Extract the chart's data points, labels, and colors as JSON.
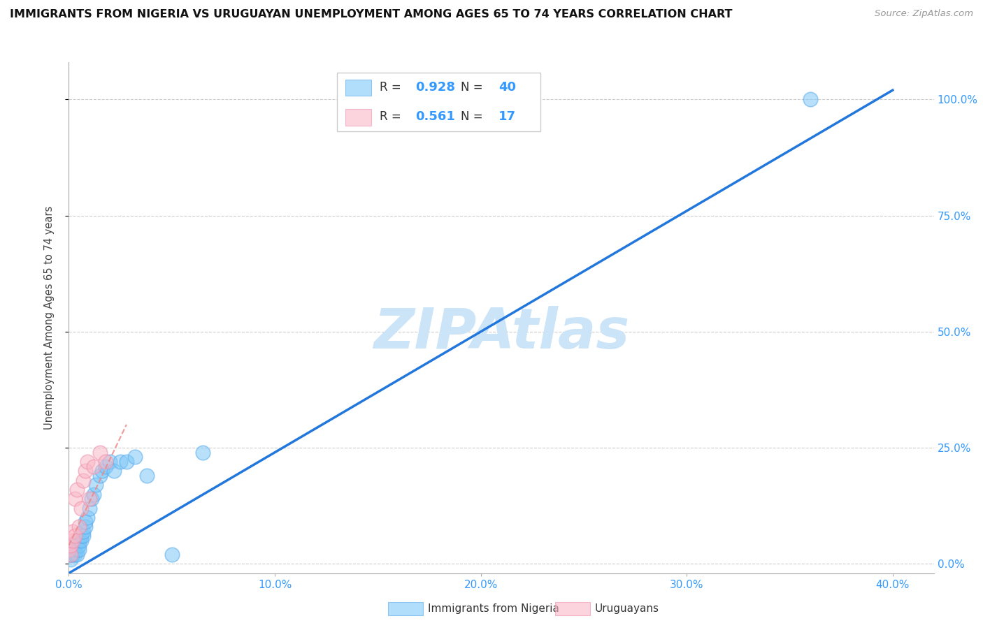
{
  "title": "IMMIGRANTS FROM NIGERIA VS URUGUAYAN UNEMPLOYMENT AMONG AGES 65 TO 74 YEARS CORRELATION CHART",
  "source": "Source: ZipAtlas.com",
  "xlabel_ticks": [
    "0.0%",
    "10.0%",
    "20.0%",
    "30.0%",
    "40.0%"
  ],
  "xlabel_tick_vals": [
    0.0,
    0.1,
    0.2,
    0.3,
    0.4
  ],
  "ylabel": "Unemployment Among Ages 65 to 74 years",
  "ylabel_ticks": [
    "100.0%",
    "75.0%",
    "50.0%",
    "25.0%",
    "0.0%"
  ],
  "ylabel_tick_vals": [
    1.0,
    0.75,
    0.5,
    0.25,
    0.0
  ],
  "xlim": [
    0.0,
    0.42
  ],
  "ylim": [
    -0.02,
    1.08
  ],
  "blue_R": 0.928,
  "blue_N": 40,
  "pink_R": 0.561,
  "pink_N": 17,
  "blue_color": "#7ec8f7",
  "pink_color": "#f9b8c8",
  "blue_edge_color": "#5aabee",
  "pink_edge_color": "#f090aa",
  "blue_line_color": "#2277dd",
  "pink_line_color": "#ee8888",
  "grid_color": "#cccccc",
  "watermark_color": "#cce4f8",
  "blue_scatter_x": [
    0.0,
    0.001,
    0.001,
    0.001,
    0.002,
    0.002,
    0.002,
    0.002,
    0.003,
    0.003,
    0.003,
    0.004,
    0.004,
    0.004,
    0.005,
    0.005,
    0.005,
    0.006,
    0.006,
    0.007,
    0.007,
    0.008,
    0.008,
    0.009,
    0.01,
    0.011,
    0.012,
    0.013,
    0.015,
    0.016,
    0.018,
    0.02,
    0.022,
    0.025,
    0.028,
    0.032,
    0.038,
    0.05,
    0.065,
    0.36
  ],
  "blue_scatter_y": [
    0.02,
    0.01,
    0.03,
    0.02,
    0.02,
    0.03,
    0.04,
    0.02,
    0.03,
    0.04,
    0.02,
    0.03,
    0.05,
    0.02,
    0.04,
    0.05,
    0.03,
    0.05,
    0.06,
    0.06,
    0.07,
    0.08,
    0.09,
    0.1,
    0.12,
    0.14,
    0.15,
    0.17,
    0.19,
    0.2,
    0.21,
    0.22,
    0.2,
    0.22,
    0.22,
    0.23,
    0.19,
    0.02,
    0.24,
    1.0
  ],
  "pink_scatter_x": [
    0.0,
    0.001,
    0.001,
    0.002,
    0.002,
    0.003,
    0.003,
    0.004,
    0.005,
    0.006,
    0.007,
    0.008,
    0.009,
    0.01,
    0.012,
    0.015,
    0.018
  ],
  "pink_scatter_y": [
    0.03,
    0.02,
    0.04,
    0.05,
    0.07,
    0.06,
    0.14,
    0.16,
    0.08,
    0.12,
    0.18,
    0.2,
    0.22,
    0.14,
    0.21,
    0.24,
    0.22
  ],
  "blue_line_x0": 0.0,
  "blue_line_x1": 0.4,
  "blue_line_y0": -0.02,
  "blue_line_y1": 1.02,
  "pink_line_x0": 0.0,
  "pink_line_x1": 0.028,
  "pink_line_y0": 0.04,
  "pink_line_y1": 0.3
}
